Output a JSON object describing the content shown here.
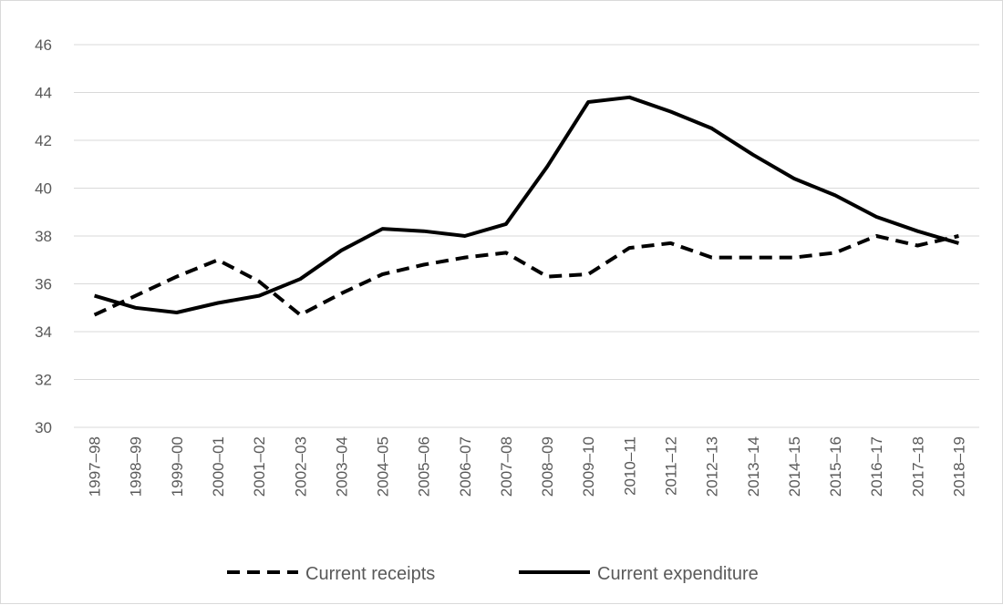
{
  "chart_data": {
    "type": "line",
    "categories": [
      "1997–98",
      "1998–99",
      "1999–00",
      "2000–01",
      "2001–02",
      "2002–03",
      "2003–04",
      "2004–05",
      "2005–06",
      "2006–07",
      "2007–08",
      "2008–09",
      "2009–10",
      "2010–11",
      "2011–12",
      "2012–13",
      "2013–14",
      "2014–15",
      "2015–16",
      "2016–17",
      "2017–18",
      "2018–19"
    ],
    "series": [
      {
        "name": "Current receipts",
        "style": "dashed",
        "color": "#000000",
        "values": [
          34.7,
          35.5,
          36.3,
          37.0,
          36.1,
          34.7,
          35.6,
          36.4,
          36.8,
          37.1,
          37.3,
          36.3,
          36.4,
          37.5,
          37.7,
          37.1,
          37.1,
          37.1,
          37.3,
          38.0,
          37.6,
          38.0
        ]
      },
      {
        "name": "Current expenditure",
        "style": "solid",
        "color": "#000000",
        "values": [
          35.5,
          35.0,
          34.8,
          35.2,
          35.5,
          36.2,
          37.4,
          38.3,
          38.2,
          38.0,
          38.5,
          40.9,
          43.6,
          43.8,
          43.2,
          42.5,
          41.4,
          40.4,
          39.7,
          38.8,
          38.2,
          37.7
        ]
      }
    ],
    "title": "",
    "xlabel": "",
    "ylabel": "",
    "ylim": [
      30,
      46
    ],
    "yticks": [
      30,
      32,
      34,
      36,
      38,
      40,
      42,
      44,
      46
    ],
    "grid": "horizontal",
    "legend": "bottom"
  }
}
